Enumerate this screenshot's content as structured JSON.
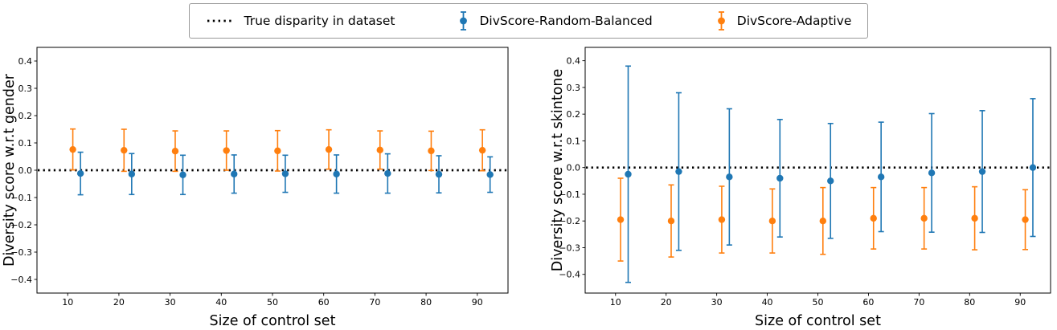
{
  "figure": {
    "background": "#ffffff",
    "legend": {
      "position": "top-center",
      "items": [
        {
          "label": "True disparity in dataset",
          "glyph": "dotted-line",
          "color": "#000000"
        },
        {
          "label": "DivScore-Random-Balanced",
          "glyph": "errorbar-marker",
          "color": "#1f77b4"
        },
        {
          "label": "DivScore-Adaptive",
          "glyph": "errorbar-marker",
          "color": "#ff7f0e"
        }
      ]
    }
  },
  "chart_data": [
    {
      "type": "scatter",
      "error_style": "errorbar",
      "title": "",
      "xlabel": "Size of control set",
      "ylabel": "Diversity score w.r.t gender",
      "xlim": [
        4,
        96
      ],
      "ylim": [
        -0.45,
        0.45
      ],
      "xticks": [
        10,
        20,
        30,
        40,
        50,
        60,
        70,
        80,
        90
      ],
      "yticks": [
        -0.4,
        -0.3,
        -0.2,
        -0.1,
        0.0,
        0.1,
        0.2,
        0.3,
        0.4
      ],
      "grid": false,
      "reference_line": {
        "y": 0.0,
        "style": "dotted",
        "color": "#000000",
        "label": "True disparity in dataset"
      },
      "series": [
        {
          "name": "DivScore-Adaptive",
          "color": "#ff7f0e",
          "x": [
            11,
            21,
            31,
            41,
            51,
            61,
            71,
            81,
            91
          ],
          "y": [
            0.076,
            0.073,
            0.07,
            0.072,
            0.071,
            0.076,
            0.074,
            0.071,
            0.073
          ],
          "yerr": [
            0.075,
            0.077,
            0.074,
            0.072,
            0.074,
            0.072,
            0.07,
            0.072,
            0.075
          ]
        },
        {
          "name": "DivScore-Random-Balanced",
          "color": "#1f77b4",
          "x": [
            12.5,
            22.5,
            32.5,
            42.5,
            52.5,
            62.5,
            72.5,
            82.5,
            92.5
          ],
          "y": [
            -0.012,
            -0.014,
            -0.017,
            -0.014,
            -0.013,
            -0.014,
            -0.012,
            -0.015,
            -0.016
          ],
          "yerr": [
            0.078,
            0.075,
            0.072,
            0.07,
            0.068,
            0.07,
            0.072,
            0.068,
            0.065
          ]
        }
      ]
    },
    {
      "type": "scatter",
      "error_style": "errorbar",
      "title": "",
      "xlabel": "Size of control set",
      "ylabel": "Diversity score w.r.t skintone",
      "xlim": [
        4,
        96
      ],
      "ylim": [
        -0.47,
        0.45
      ],
      "xticks": [
        10,
        20,
        30,
        40,
        50,
        60,
        70,
        80,
        90
      ],
      "yticks": [
        -0.4,
        -0.3,
        -0.2,
        -0.1,
        0.0,
        0.1,
        0.2,
        0.3,
        0.4
      ],
      "grid": false,
      "reference_line": {
        "y": 0.0,
        "style": "dotted",
        "color": "#000000",
        "label": "True disparity in dataset"
      },
      "series": [
        {
          "name": "DivScore-Adaptive",
          "color": "#ff7f0e",
          "x": [
            11,
            21,
            31,
            41,
            51,
            61,
            71,
            81,
            91
          ],
          "y": [
            -0.195,
            -0.2,
            -0.195,
            -0.2,
            -0.2,
            -0.19,
            -0.19,
            -0.19,
            -0.195
          ],
          "yerr": [
            0.155,
            0.135,
            0.125,
            0.12,
            0.125,
            0.115,
            0.115,
            0.118,
            0.112
          ]
        },
        {
          "name": "DivScore-Random-Balanced",
          "color": "#1f77b4",
          "x": [
            12.5,
            22.5,
            32.5,
            42.5,
            52.5,
            62.5,
            72.5,
            82.5,
            92.5
          ],
          "y": [
            -0.025,
            -0.015,
            -0.035,
            -0.04,
            -0.05,
            -0.035,
            -0.02,
            -0.015,
            0.0
          ],
          "yerr": [
            0.405,
            0.295,
            0.255,
            0.22,
            0.215,
            0.205,
            0.222,
            0.228,
            0.258
          ]
        }
      ]
    }
  ]
}
